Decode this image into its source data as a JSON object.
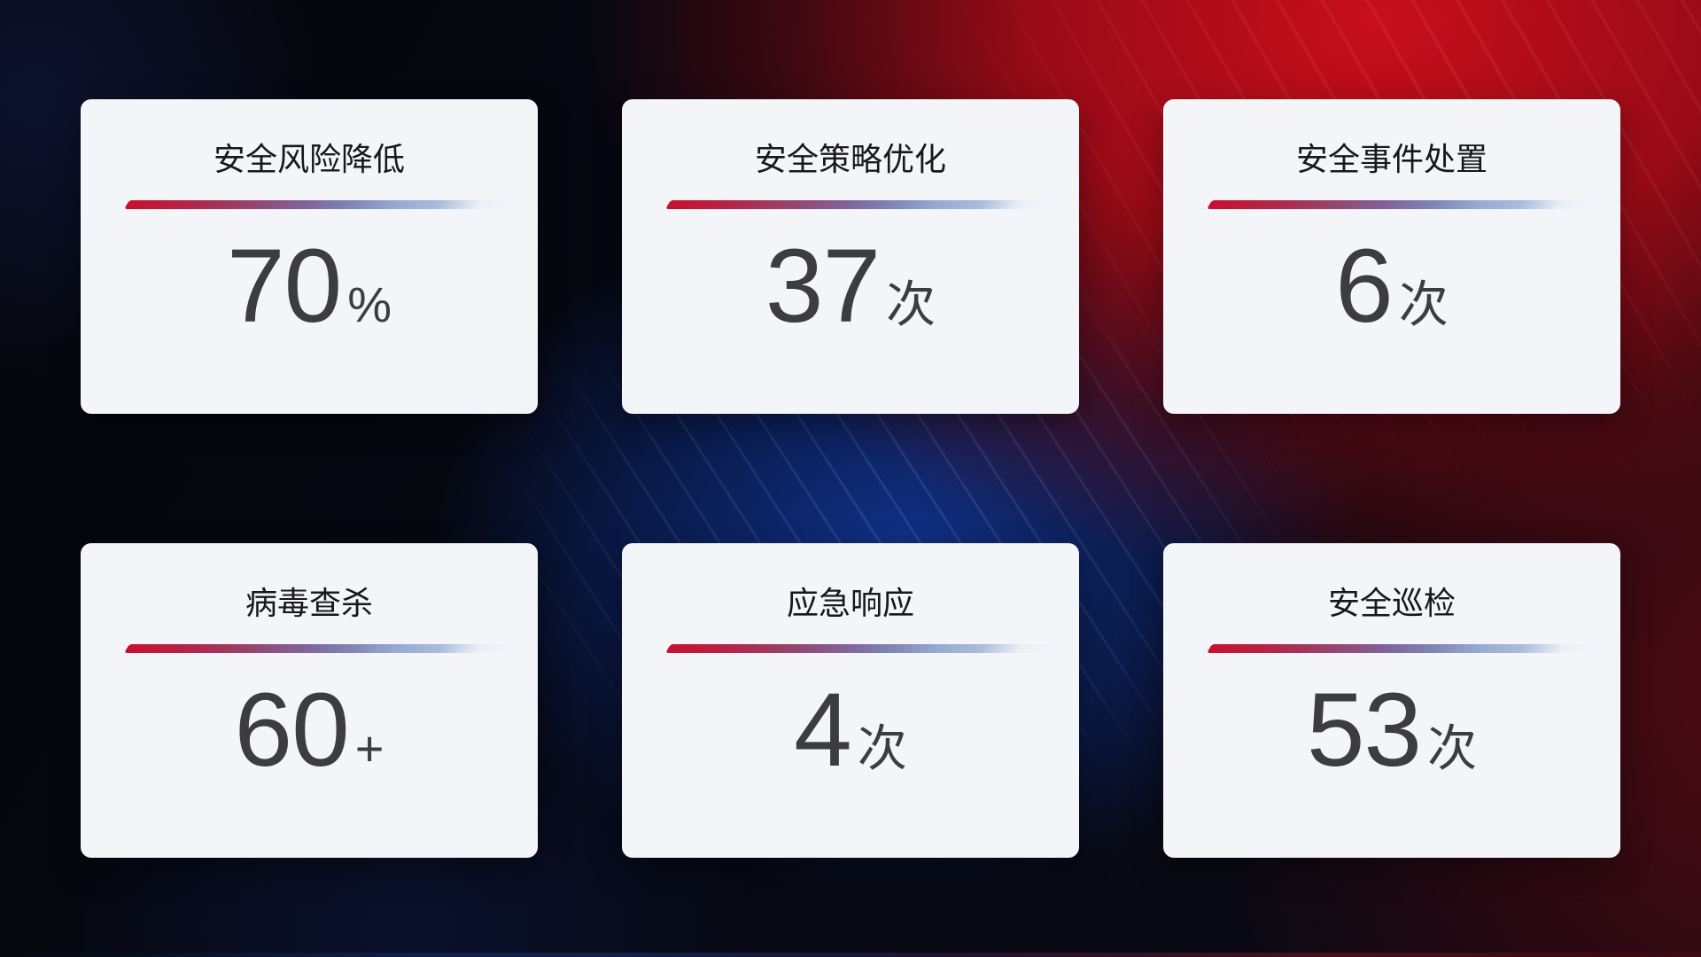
{
  "colors": {
    "card_bg": "#f4f5f9",
    "title_text": "#17171c",
    "value_text": "#3d3d41",
    "divider_start": "#c8102e",
    "divider_mid": "#80639a",
    "divider_end": "#a9bcdc",
    "bg_red": "#b10d1c",
    "bg_blue": "#10308a"
  },
  "cards": [
    {
      "title": "安全风险降低",
      "value": "70",
      "unit": "%"
    },
    {
      "title": "安全策略优化",
      "value": "37",
      "unit": "次"
    },
    {
      "title": "安全事件处置",
      "value": "6",
      "unit": "次"
    },
    {
      "title": "病毒查杀",
      "value": "60",
      "unit": "+"
    },
    {
      "title": "应急响应",
      "value": "4",
      "unit": "次"
    },
    {
      "title": "安全巡检",
      "value": "53",
      "unit": "次"
    }
  ]
}
